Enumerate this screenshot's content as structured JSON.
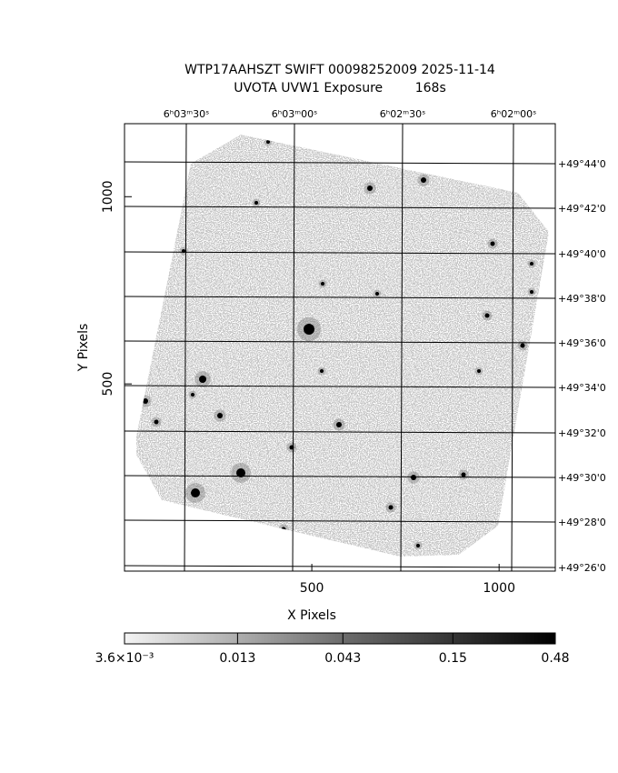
{
  "chart_data": {
    "type": "image",
    "title": "WTP17AAHSZT SWIFT 00098252009 2025-11-14",
    "subtitle": "UVOTA UVW1 Exposure        168s",
    "xlabel": "X Pixels",
    "ylabel": "Y Pixels",
    "xlim": [
      0,
      1150
    ],
    "ylim": [
      0,
      1195
    ],
    "xticks": [
      500,
      1000
    ],
    "yticks": [
      500,
      1000
    ],
    "ra_labels": [
      "6ʰ03ᵐ30ˢ",
      "6ʰ03ᵐ00ˢ",
      "6ʰ02ᵐ30ˢ",
      "6ʰ02ᵐ00ˢ"
    ],
    "dec_labels": [
      "+49°44'0",
      "+49°42'0",
      "+49°40'0",
      "+49°38'0",
      "+49°36'0",
      "+49°34'0",
      "+49°32'0",
      "+49°30'0",
      "+49°28'0",
      "+49°26'0"
    ],
    "colorbar": {
      "scale": "log",
      "lim": [
        0.0036,
        0.48
      ],
      "ticks": [
        {
          "value": 0.0036,
          "label": "3.6×10⁻³"
        },
        0.013,
        0.043,
        0.15,
        0.48
      ]
    }
  }
}
